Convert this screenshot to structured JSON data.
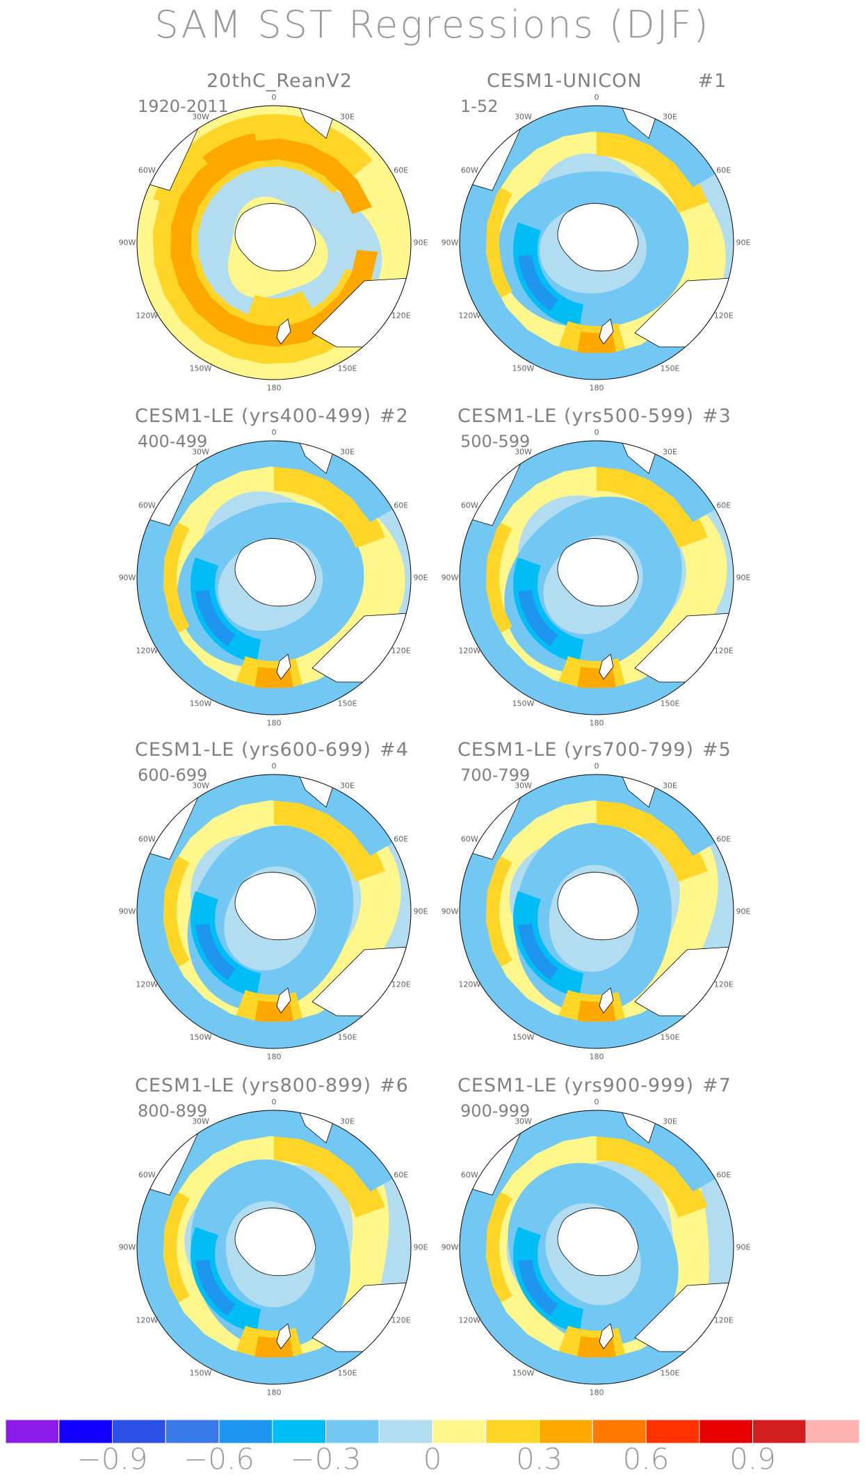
{
  "title": "SAM SST Regressions (DJF)",
  "chart_data": {
    "type": "polar-contour-map",
    "variable": "SST regression on SAM index",
    "season": "DJF",
    "panels": [
      {
        "title": "20thC_ReanV2",
        "index": "",
        "period": "1920-2011"
      },
      {
        "title": "CESM1-UNICON",
        "index": "#1",
        "period": "1-52"
      },
      {
        "title": "CESM1-LE (yrs400-499)",
        "index": "#2",
        "period": "400-499"
      },
      {
        "title": "CESM1-LE (yrs500-599)",
        "index": "#3",
        "period": "500-599"
      },
      {
        "title": "CESM1-LE (yrs600-699)",
        "index": "#4",
        "period": "600-699"
      },
      {
        "title": "CESM1-LE (yrs700-799)",
        "index": "#5",
        "period": "700-799"
      },
      {
        "title": "CESM1-LE (yrs800-899)",
        "index": "#6",
        "period": "800-899"
      },
      {
        "title": "CESM1-LE (yrs900-999)",
        "index": "#7",
        "period": "900-999"
      }
    ],
    "longitude_labels": [
      "0",
      "30E",
      "60E",
      "90E",
      "120E",
      "150E",
      "180",
      "150W",
      "120W",
      "90W",
      "60W",
      "30W"
    ],
    "colorbar": {
      "colors": [
        "#8c1ae8",
        "#1400ff",
        "#2c4fe6",
        "#3a7ae8",
        "#1e96f0",
        "#00bef5",
        "#72c8f2",
        "#b2dcf0",
        "#fff68c",
        "#ffd628",
        "#ffa800",
        "#ff7800",
        "#ff3200",
        "#e60000",
        "#d21e1e",
        "#ffb4b4"
      ],
      "tick_labels": [
        "−0.9",
        "−0.6",
        "−0.3",
        "0",
        "0.3",
        "0.6",
        "0.9"
      ],
      "tick_values": [
        -0.9,
        -0.6,
        -0.3,
        0,
        0.3,
        0.6,
        0.9
      ]
    }
  }
}
